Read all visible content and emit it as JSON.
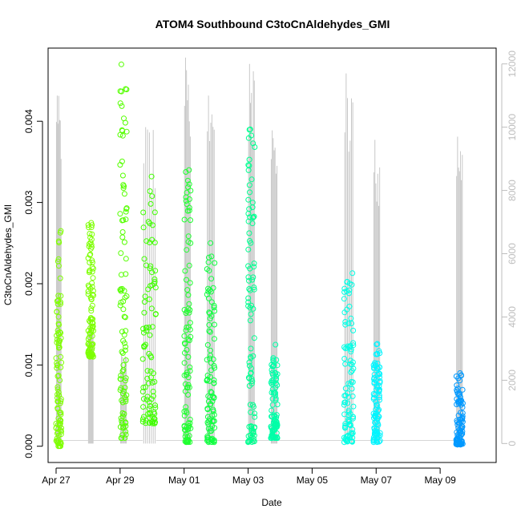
{
  "chart_data": {
    "type": "scatter",
    "title": "ATOM4 Southbound C3toCnAldehydes_GMI",
    "xlabel": "Date",
    "ylabel": "C3toCnAldehydes_GMI",
    "xlim": [
      "2016-04-26T18:00",
      "2016-05-10T18:00"
    ],
    "ylim": [
      -0.0002,
      0.0049
    ],
    "ylim_right": [
      -600,
      12500
    ],
    "x_ticks": [
      {
        "date": "2016-04-27",
        "label": "Apr 27"
      },
      {
        "date": "2016-04-29",
        "label": "Apr 29"
      },
      {
        "date": "2016-05-01",
        "label": "May 01"
      },
      {
        "date": "2016-05-03",
        "label": "May 03"
      },
      {
        "date": "2016-05-05",
        "label": "May 05"
      },
      {
        "date": "2016-05-07",
        "label": "May 07"
      },
      {
        "date": "2016-05-09",
        "label": "May 09"
      }
    ],
    "y_ticks": [
      "0.000",
      "0.001",
      "0.002",
      "0.003",
      "0.004"
    ],
    "y_tick_values": [
      0,
      0.001,
      0.002,
      0.003,
      0.004
    ],
    "y_right_ticks": [
      "0",
      "2000",
      "4000",
      "6000",
      "8000",
      "10000",
      "12000"
    ],
    "y_right_tick_values": [
      0,
      2000,
      4000,
      6000,
      8000,
      10000,
      12000
    ],
    "marker": "open-circle",
    "color_encoding": "time (green to blue)",
    "altitude_trace_color": "#c8c8c8",
    "grid": false,
    "legend": "none",
    "flights": [
      {
        "start": "2016-04-27T00:00",
        "end": "2016-04-27T04:00",
        "ymin": 0.0,
        "ymax": 0.00265,
        "color": "#7fff00",
        "alt_max": 11000
      },
      {
        "start": "2016-04-28T00:00",
        "end": "2016-04-28T04:00",
        "ymin": 0.0011,
        "ymax": 0.00275,
        "color": "#7cff00",
        "alt_max": 4000
      },
      {
        "start": "2016-04-29T00:00",
        "end": "2016-04-29T05:00",
        "ymin": 0.0001,
        "ymax": 0.0047,
        "color": "#55ff00",
        "alt_max": 2800
      },
      {
        "start": "2016-04-29T17:00",
        "end": "2016-04-30T03:00",
        "ymin": 0.00028,
        "ymax": 0.00332,
        "color": "#40ff00",
        "alt_max": 10000
      },
      {
        "start": "2016-05-01T00:00",
        "end": "2016-05-01T05:00",
        "ymin": 5e-05,
        "ymax": 0.0034,
        "color": "#20ff30",
        "alt_max": 12200
      },
      {
        "start": "2016-05-01T17:00",
        "end": "2016-05-01T23:00",
        "ymin": 5e-05,
        "ymax": 0.0025,
        "color": "#10ff40",
        "alt_max": 11000
      },
      {
        "start": "2016-05-03T00:00",
        "end": "2016-05-03T05:00",
        "ymin": 5e-05,
        "ymax": 0.0039,
        "color": "#00ff90",
        "alt_max": 12000
      },
      {
        "start": "2016-05-03T17:00",
        "end": "2016-05-03T22:00",
        "ymin": 0.0001,
        "ymax": 0.00125,
        "color": "#00ffa8",
        "alt_max": 9900
      },
      {
        "start": "2016-05-06T00:00",
        "end": "2016-05-06T07:00",
        "ymin": 5e-05,
        "ymax": 0.00213,
        "color": "#00ffe5",
        "alt_max": 11700
      },
      {
        "start": "2016-05-06T22:00",
        "end": "2016-05-07T03:00",
        "ymin": 5e-05,
        "ymax": 0.00126,
        "color": "#00f5ff",
        "alt_max": 9600
      },
      {
        "start": "2016-05-09T12:00",
        "end": "2016-05-09T17:00",
        "ymin": 2e-05,
        "ymax": 0.0009,
        "color": "#0099ff",
        "alt_max": 9700
      }
    ]
  }
}
